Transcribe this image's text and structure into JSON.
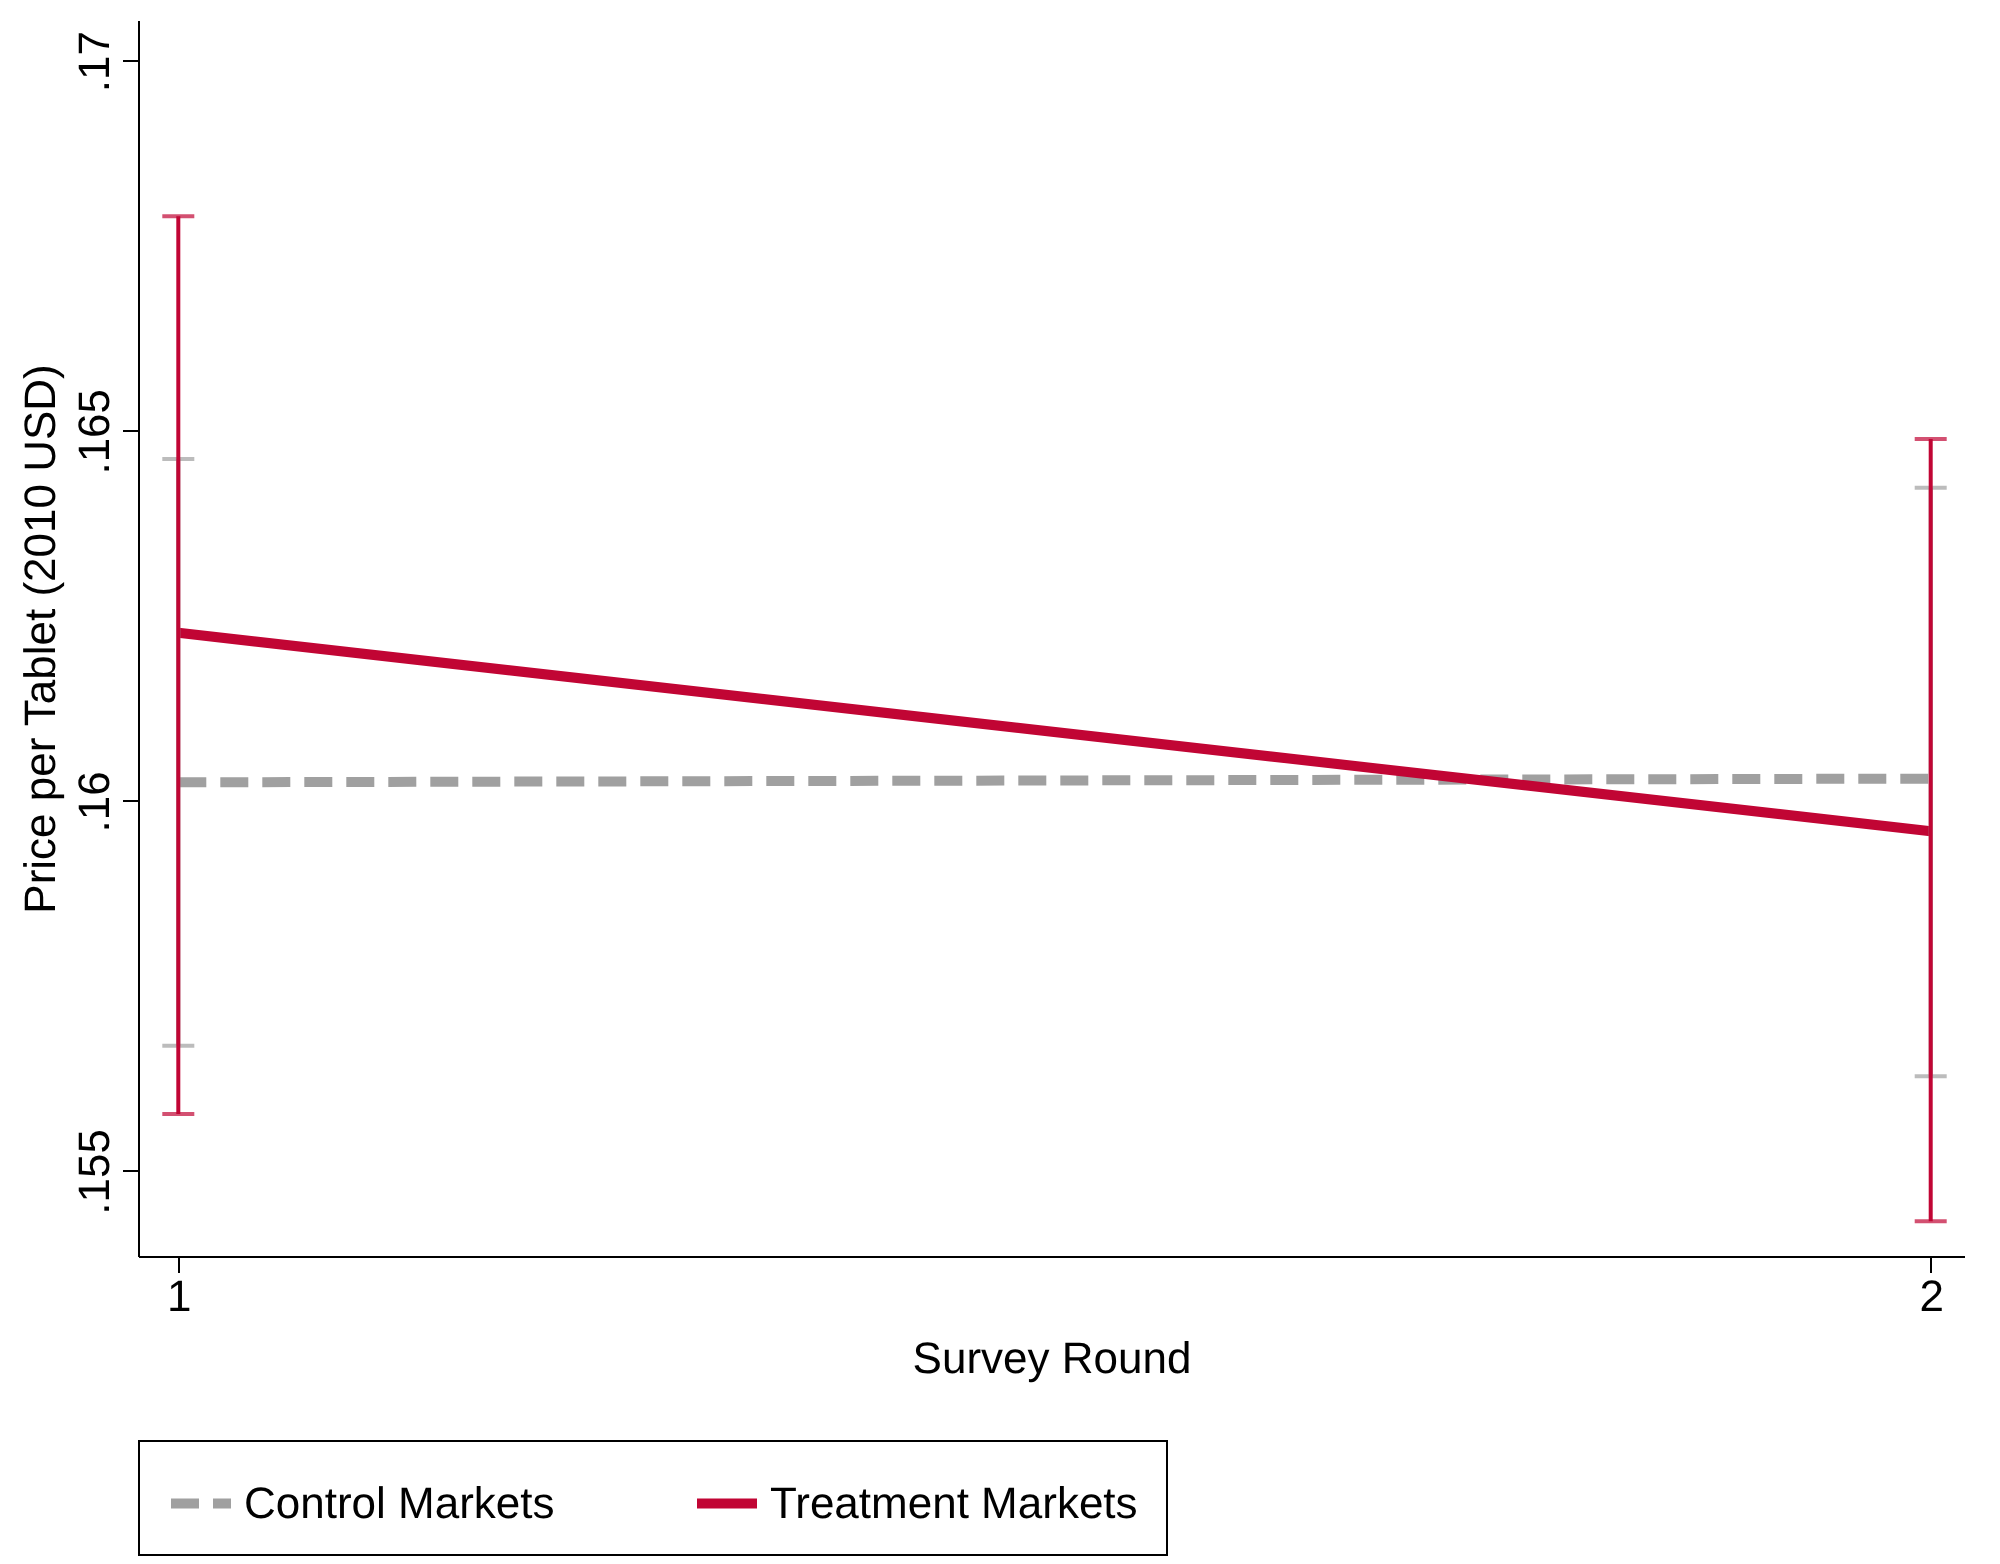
{
  "chart_data": {
    "type": "line",
    "xlabel": "Survey Round",
    "ylabel": "Price per Tablet (2010 USD)",
    "x": [
      1,
      2
    ],
    "series": [
      {
        "name": "Control Markets",
        "color": "#a0a0a0",
        "line_style": "dashed",
        "values": [
          0.16025,
          0.1603
        ],
        "errors": [
          [
            0.15669,
            0.16462
          ],
          [
            0.15628,
            0.16423
          ]
        ]
      },
      {
        "name": "Treatment Markets",
        "color": "#c10534",
        "line_style": "solid",
        "values": [
          0.16227,
          0.15959
        ],
        "errors": [
          [
            0.15577,
            0.1679
          ],
          [
            0.15432,
            0.16489
          ]
        ]
      }
    ],
    "xlim": [
      0.977,
      2.019
    ],
    "xticks": [
      1,
      2
    ],
    "ylim": [
      0.15385,
      0.17055
    ],
    "yticks": [
      {
        "value": 0.155,
        "label": ".155"
      },
      {
        "value": 0.16,
        "label": ".16"
      },
      {
        "value": 0.165,
        "label": ".165"
      },
      {
        "value": 0.17,
        "label": ".17"
      }
    ],
    "grid": false,
    "legend": "bottom"
  }
}
